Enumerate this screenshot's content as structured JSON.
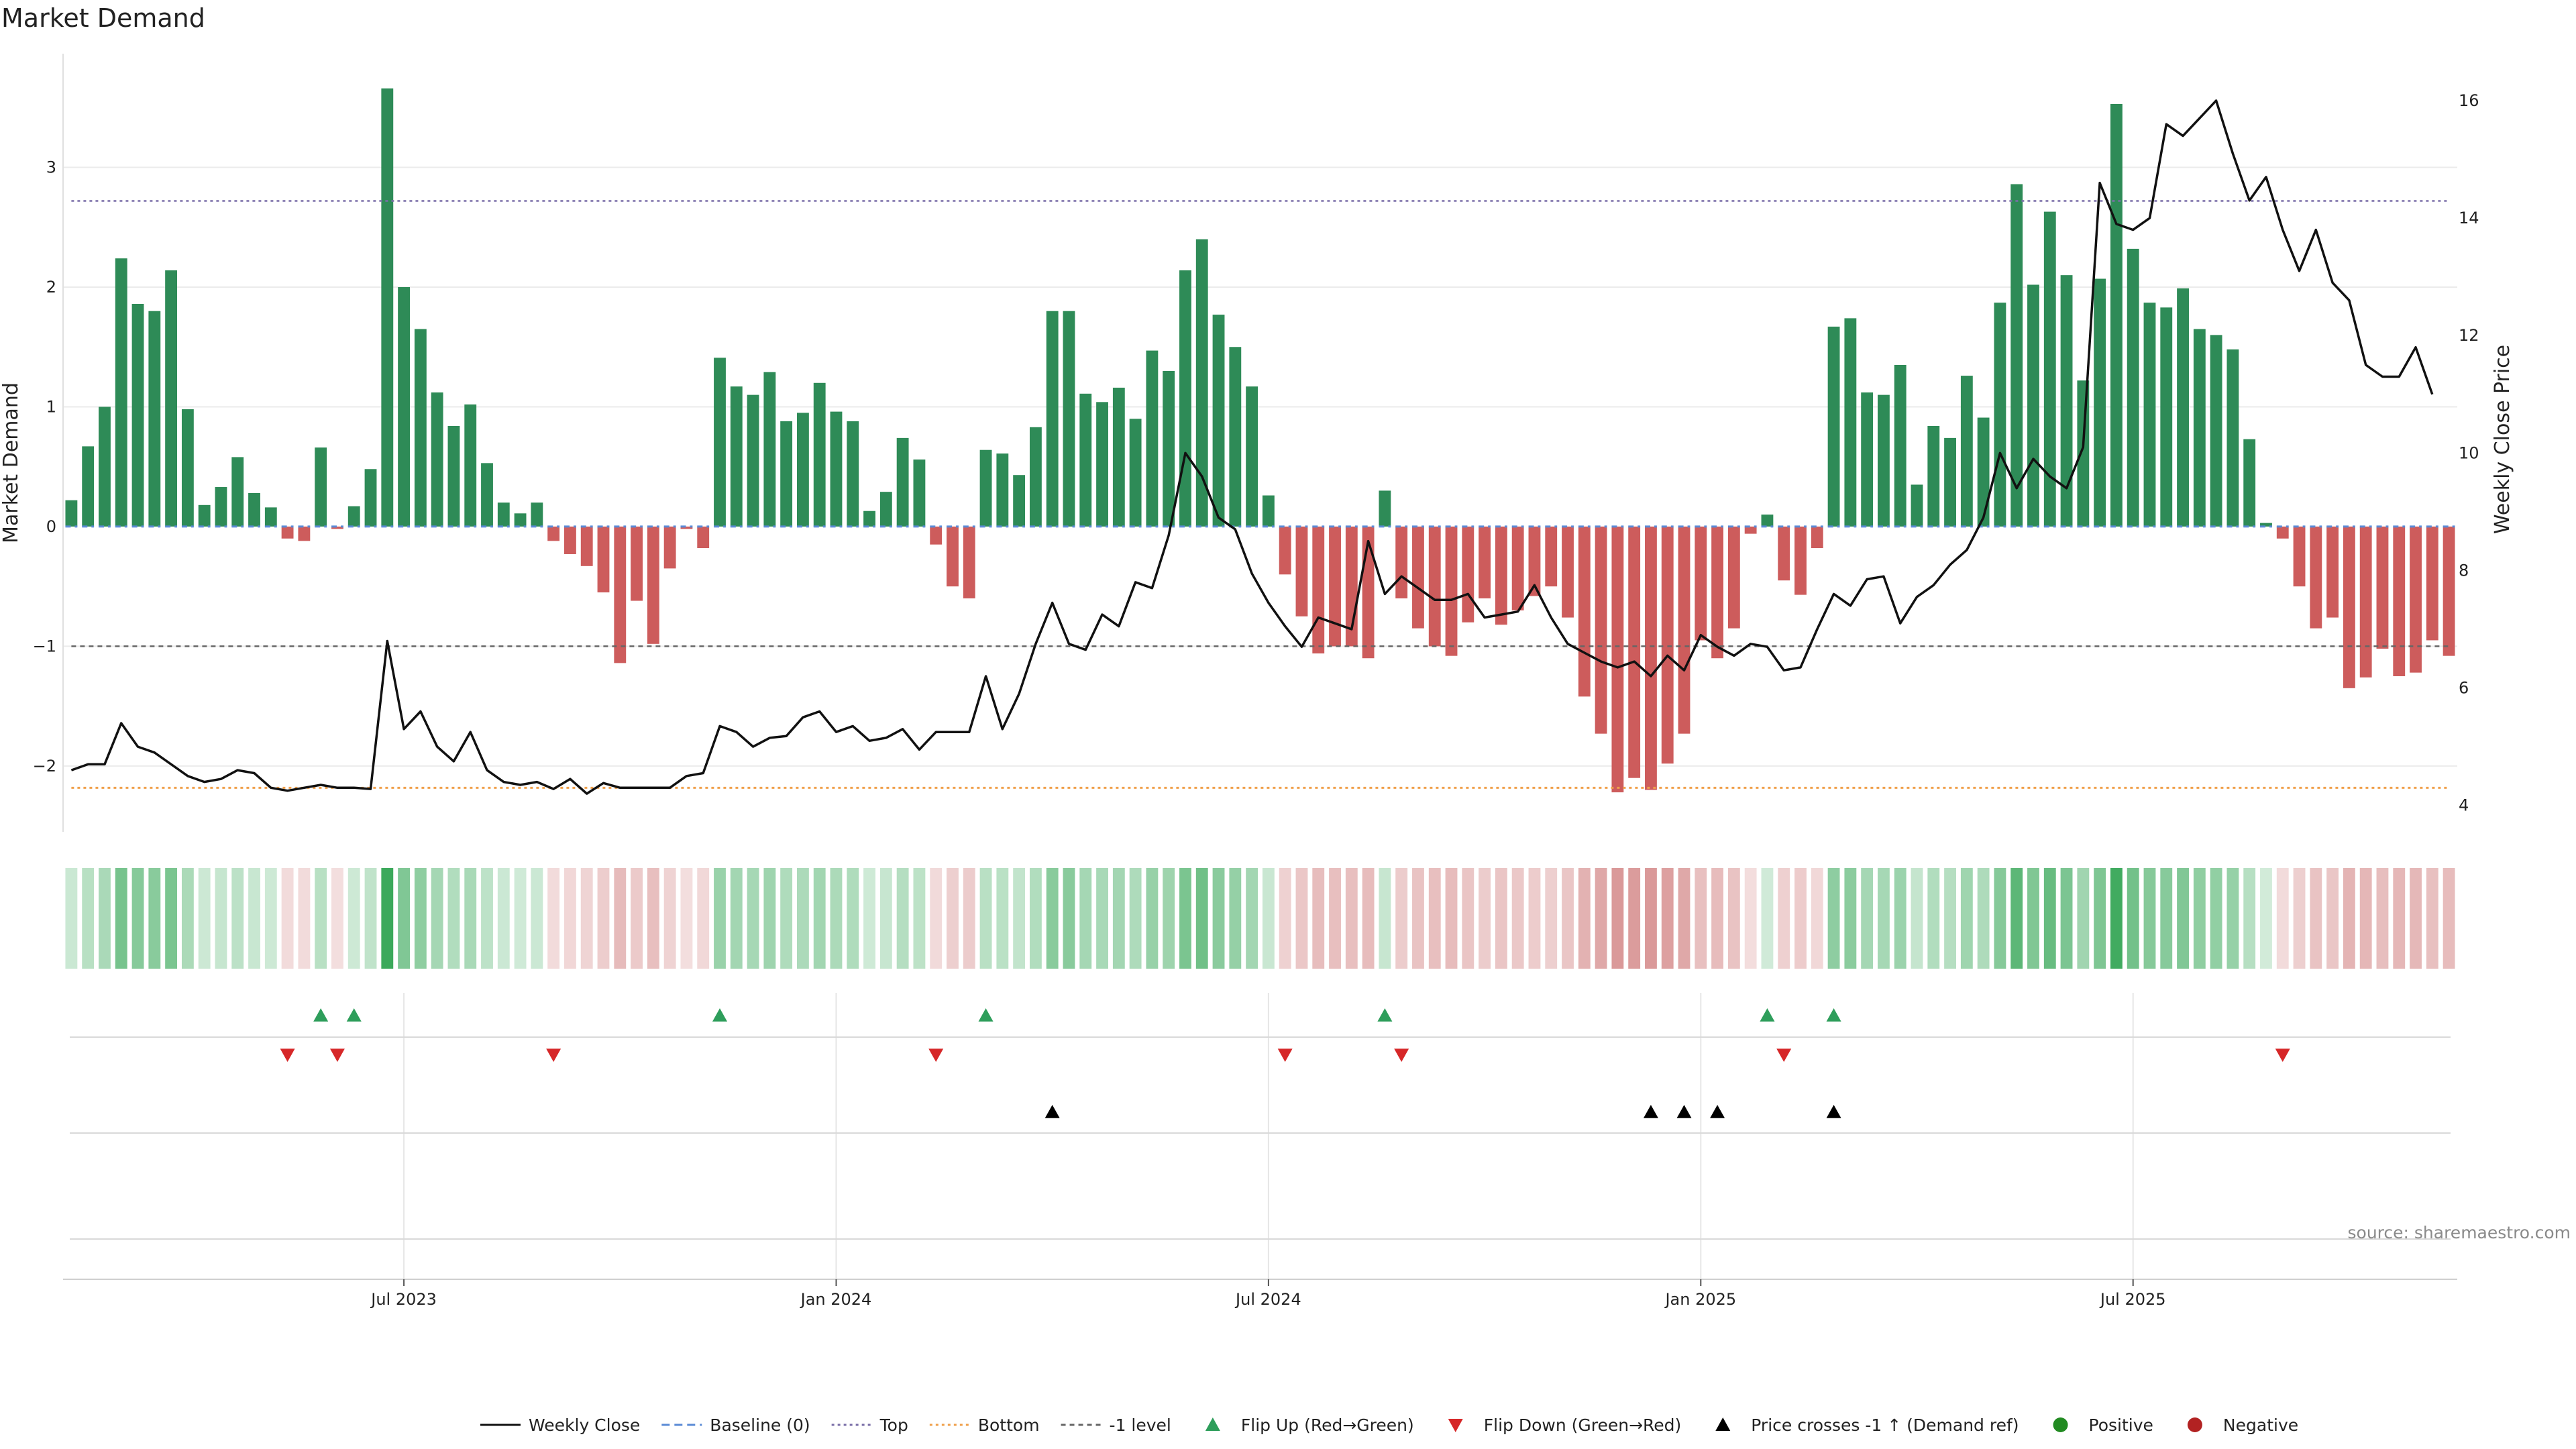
{
  "chart_data": {
    "type": "bar",
    "title": "Market Demand",
    "ylabel": "Market Demand",
    "y2label": "Weekly Close Price",
    "source": "source: sharemaestro.com",
    "ylim": [
      -2.55,
      3.95
    ],
    "y2lim": [
      3.55,
      16.8
    ],
    "yticks": [
      {
        "v": 3,
        "label": "3"
      },
      {
        "v": 2,
        "label": "2"
      },
      {
        "v": 1,
        "label": "1"
      },
      {
        "v": 0,
        "label": "0"
      },
      {
        "v": -1,
        "label": "−1"
      },
      {
        "v": -2,
        "label": "−2"
      }
    ],
    "y2ticks": [
      {
        "v": 16,
        "label": "16"
      },
      {
        "v": 14,
        "label": "14"
      },
      {
        "v": 12,
        "label": "12"
      },
      {
        "v": 10,
        "label": "10"
      },
      {
        "v": 8,
        "label": "8"
      },
      {
        "v": 6,
        "label": "6"
      },
      {
        "v": 4,
        "label": "4"
      }
    ],
    "xticks": [
      {
        "i": 20,
        "label": "Jul 2023"
      },
      {
        "i": 46,
        "label": "Jan 2024"
      },
      {
        "i": 72,
        "label": "Jul 2024"
      },
      {
        "i": 98,
        "label": "Jan 2025"
      },
      {
        "i": 124,
        "label": "Jul 2025"
      }
    ],
    "reference_lines": {
      "top": 2.72,
      "minus1": -1.0,
      "bottom_price": 4.3
    },
    "demand": [
      0.22,
      0.67,
      1.0,
      2.24,
      1.86,
      1.8,
      2.14,
      0.98,
      0.18,
      0.33,
      0.58,
      0.28,
      0.16,
      -0.1,
      -0.12,
      0.66,
      -0.02,
      0.17,
      0.48,
      3.66,
      2.0,
      1.65,
      1.12,
      0.84,
      1.02,
      0.53,
      0.2,
      0.11,
      0.2,
      -0.12,
      -0.23,
      -0.33,
      -0.55,
      -1.14,
      -0.62,
      -0.98,
      -0.35,
      -0.02,
      -0.18,
      1.41,
      1.17,
      1.1,
      1.29,
      0.88,
      0.95,
      1.2,
      0.96,
      0.88,
      0.13,
      0.29,
      0.74,
      0.56,
      -0.15,
      -0.5,
      -0.6,
      0.64,
      0.61,
      0.43,
      0.83,
      1.8,
      1.8,
      1.11,
      1.04,
      1.16,
      0.9,
      1.47,
      1.3,
      2.14,
      2.4,
      1.77,
      1.5,
      1.17,
      0.26,
      -0.4,
      -0.75,
      -1.06,
      -1.0,
      -1.0,
      -1.1,
      0.3,
      -0.6,
      -0.85,
      -1.0,
      -1.08,
      -0.8,
      -0.6,
      -0.82,
      -0.7,
      -0.58,
      -0.5,
      -0.76,
      -1.42,
      -1.73,
      -2.22,
      -2.1,
      -2.2,
      -1.98,
      -1.73,
      -0.95,
      -1.1,
      -0.85,
      -0.06,
      0.1,
      -0.45,
      -0.57,
      -0.18,
      1.67,
      1.74,
      1.12,
      1.1,
      1.35,
      0.35,
      0.84,
      0.74,
      1.26,
      0.91,
      1.87,
      2.86,
      2.02,
      2.63,
      2.1,
      1.22,
      2.07,
      3.53,
      2.32,
      1.87,
      1.83,
      1.99,
      1.65,
      1.6,
      1.48,
      0.73,
      0.03,
      -0.1,
      -0.5,
      -0.85,
      -0.76,
      -1.35,
      -1.26,
      -1.02,
      -1.25,
      -1.22,
      -0.95,
      -1.08
    ],
    "price": [
      4.6,
      4.7,
      4.7,
      5.4,
      5.0,
      4.9,
      4.7,
      4.5,
      4.4,
      4.45,
      4.6,
      4.55,
      4.3,
      4.25,
      4.3,
      4.35,
      4.3,
      4.3,
      4.28,
      6.8,
      5.3,
      5.6,
      5.0,
      4.75,
      5.25,
      4.6,
      4.4,
      4.35,
      4.4,
      4.28,
      4.45,
      4.2,
      4.38,
      4.3,
      4.3,
      4.3,
      4.3,
      4.5,
      4.55,
      5.35,
      5.25,
      5.0,
      5.15,
      5.18,
      5.5,
      5.6,
      5.25,
      5.35,
      5.1,
      5.15,
      5.3,
      4.95,
      5.25,
      5.25,
      5.25,
      6.2,
      5.3,
      5.9,
      6.75,
      7.45,
      6.75,
      6.65,
      7.25,
      7.05,
      7.8,
      7.7,
      8.6,
      10.0,
      9.6,
      8.9,
      8.7,
      7.95,
      7.45,
      7.05,
      6.7,
      7.2,
      7.1,
      7.0,
      8.5,
      7.6,
      7.9,
      7.7,
      7.5,
      7.5,
      7.6,
      7.2,
      7.25,
      7.3,
      7.75,
      7.2,
      6.75,
      6.6,
      6.45,
      6.35,
      6.45,
      6.2,
      6.55,
      6.3,
      6.9,
      6.7,
      6.55,
      6.75,
      6.7,
      6.3,
      6.35,
      7.0,
      7.6,
      7.4,
      7.85,
      7.9,
      7.1,
      7.55,
      7.75,
      8.1,
      8.35,
      8.9,
      10.0,
      9.4,
      9.9,
      9.6,
      9.4,
      10.1,
      14.6,
      13.9,
      13.8,
      14.0,
      15.6,
      15.4,
      15.7,
      16.0,
      15.1,
      14.3,
      14.7,
      13.8,
      13.1,
      13.8,
      12.9,
      12.6,
      11.5,
      11.3,
      11.3,
      11.8,
      11.0
    ],
    "flip_up": [
      15,
      17,
      39,
      55,
      79,
      102,
      106
    ],
    "flip_down": [
      13,
      16,
      29,
      52,
      73,
      80,
      103,
      133
    ],
    "price_cross": [
      59,
      95,
      97,
      99,
      106
    ],
    "legend": [
      {
        "kind": "line",
        "label": "Weekly Close",
        "color": "#111111"
      },
      {
        "kind": "dash",
        "label": "Baseline (0)",
        "color": "#5b8bd6"
      },
      {
        "kind": "dot",
        "label": "Top",
        "color": "#7a6fa8"
      },
      {
        "kind": "dot",
        "label": "Bottom",
        "color": "#f0a04b"
      },
      {
        "kind": "dashgray",
        "label": "-1 level",
        "color": "#666666"
      },
      {
        "kind": "tri-up",
        "label": "Flip Up (Red→Green)",
        "color": "#2e9e5b"
      },
      {
        "kind": "tri-down",
        "label": "Flip Down (Green→Red)",
        "color": "#d62728"
      },
      {
        "kind": "tri-up",
        "label": "Price crosses -1 ↑ (Demand ref)",
        "color": "#000000"
      },
      {
        "kind": "circle",
        "label": "Positive",
        "color": "#228b22"
      },
      {
        "kind": "circle",
        "label": "Negative",
        "color": "#b22222"
      }
    ],
    "colors": {
      "positive_bar": "#2e8b57",
      "negative_bar": "#cd5c5c",
      "price_line": "#111111",
      "baseline": "#5b8bd6",
      "top_line": "#7a6fa8",
      "bottom_line": "#f0a04b",
      "minus1_line": "#666666",
      "flip_up": "#2e9e5b",
      "flip_down": "#d62728",
      "price_cross": "#000000"
    }
  }
}
